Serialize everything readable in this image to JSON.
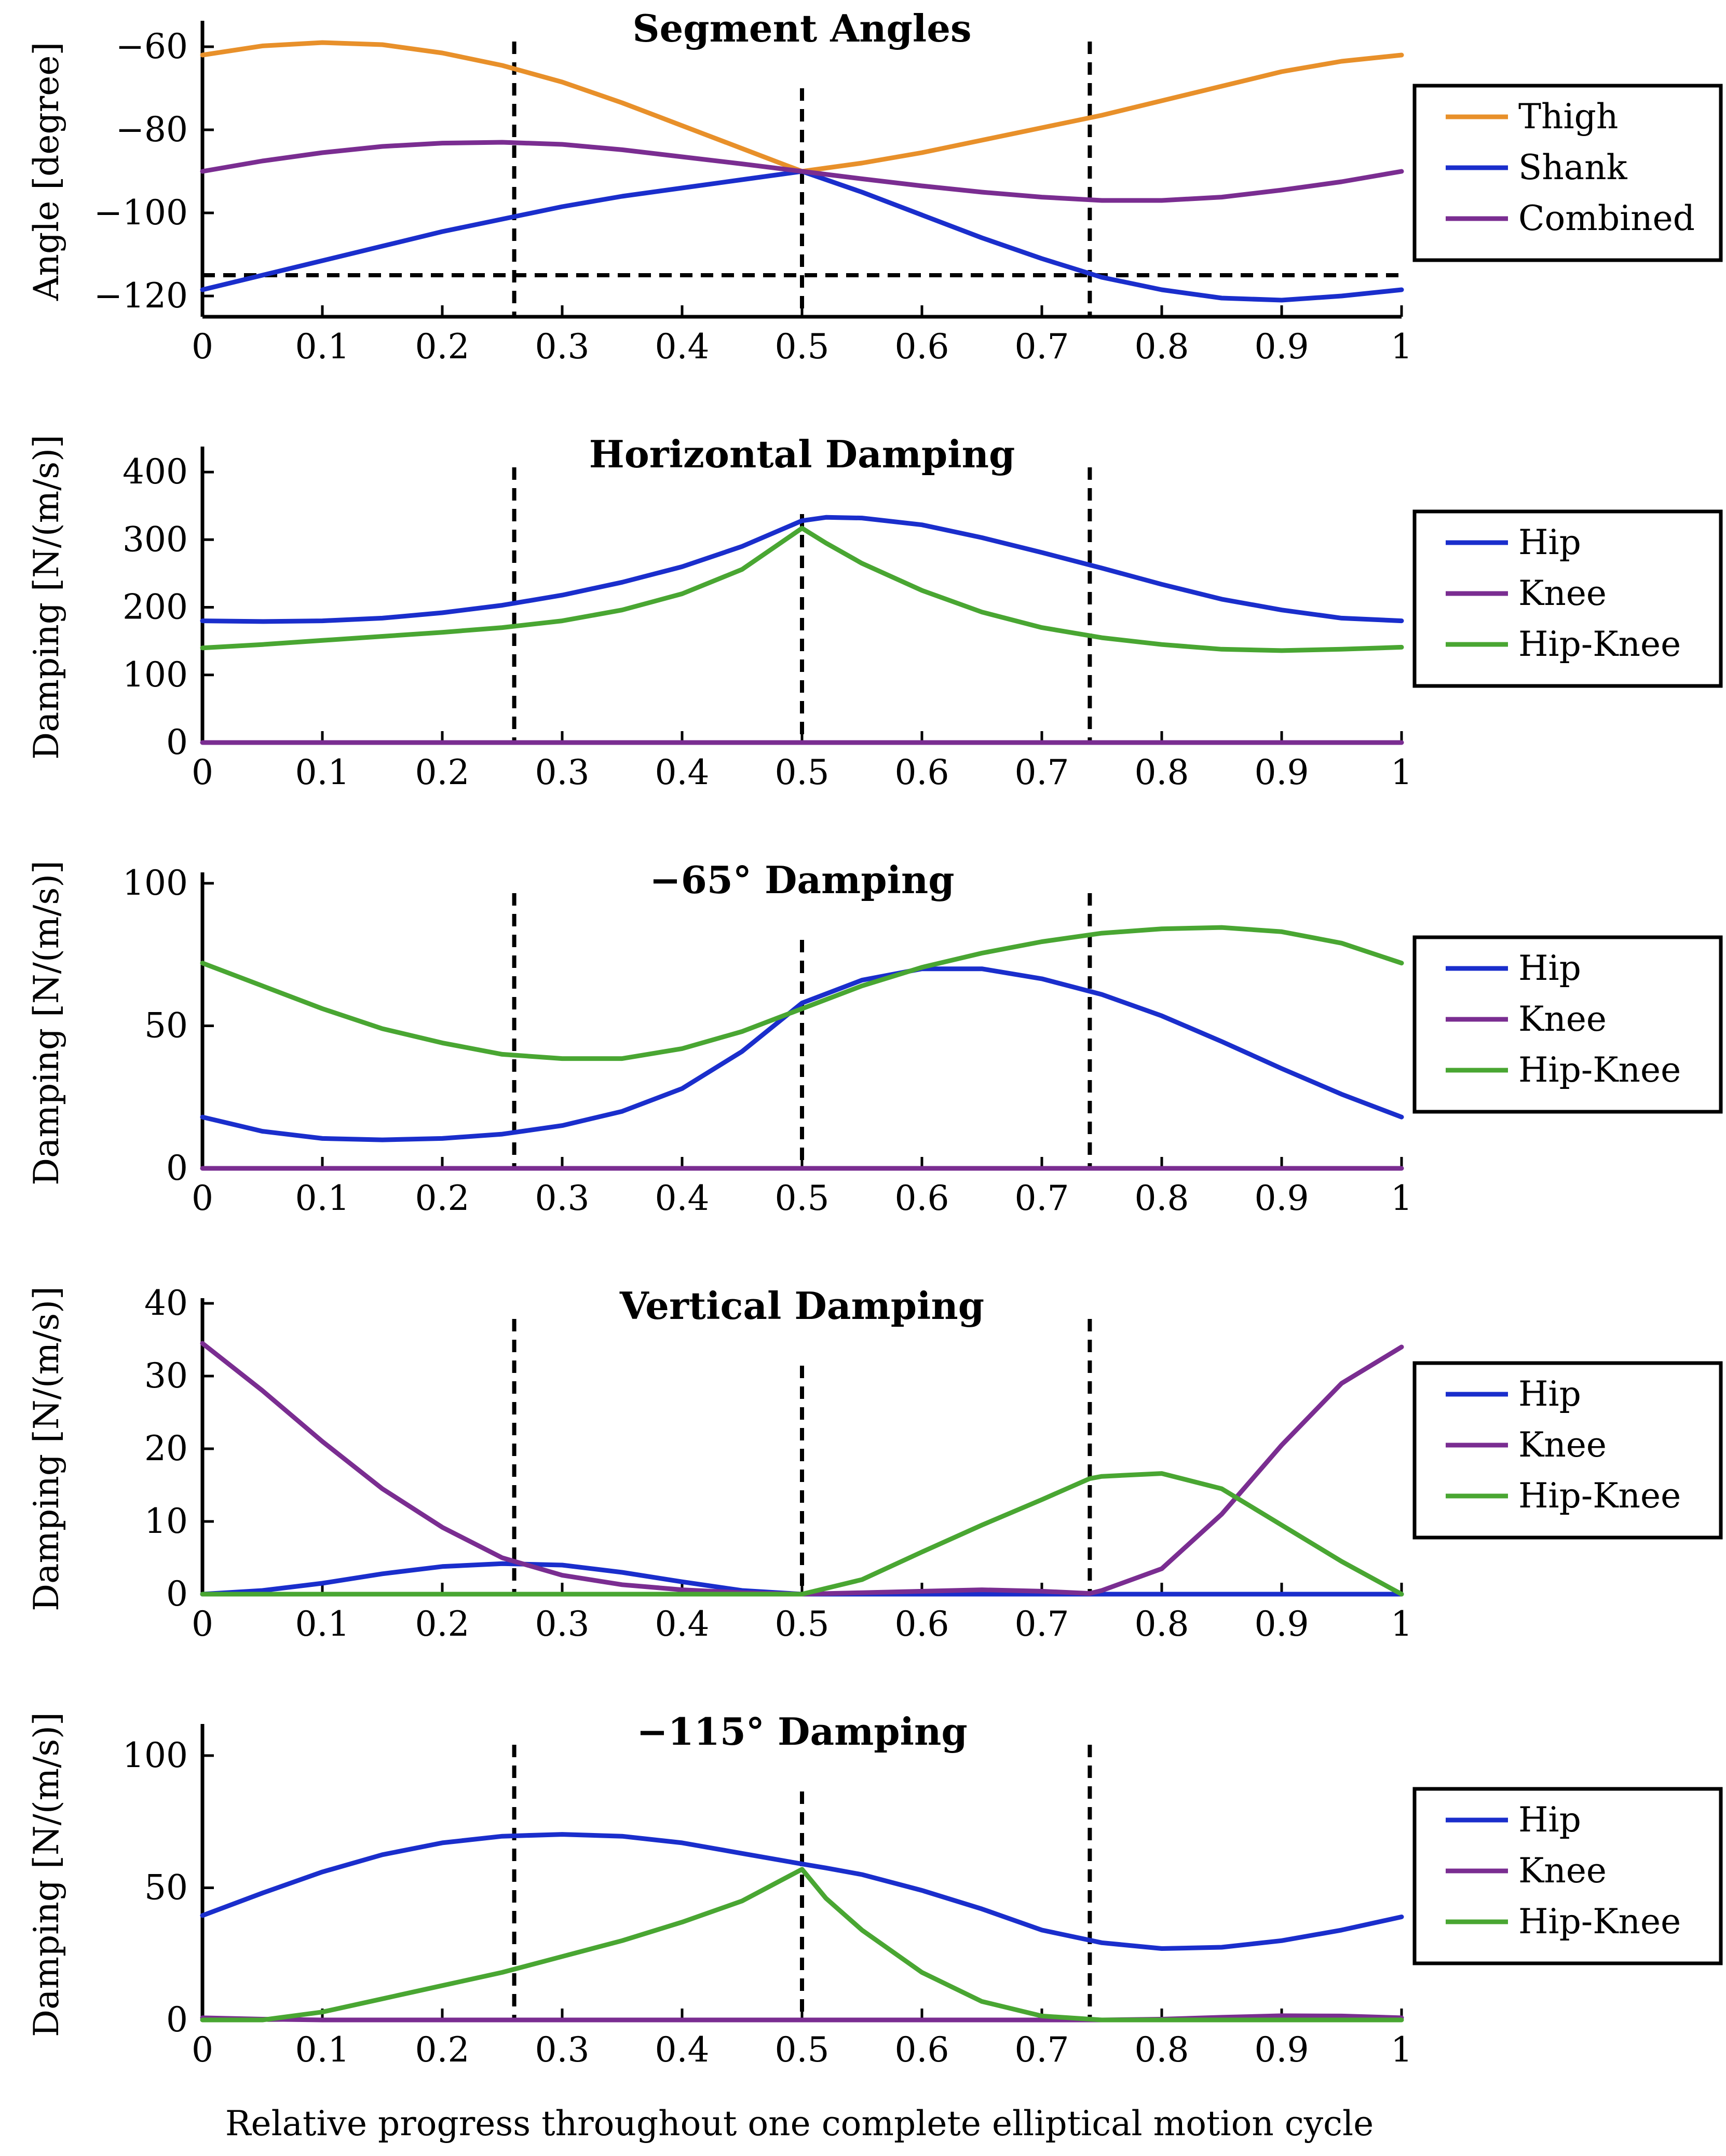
{
  "chart_data": [
    {
      "type": "line",
      "title": "Segment Angles",
      "ylabel": "Angle [degree]",
      "xlim": [
        0,
        1
      ],
      "ylim": [
        -125,
        -55
      ],
      "yticks": [
        -60,
        -80,
        -100,
        -120
      ],
      "ytick_labels": [
        "−60",
        "−80",
        "−100",
        "−120"
      ],
      "xticks": [
        0,
        0.1,
        0.2,
        0.3,
        0.4,
        0.5,
        0.6,
        0.7,
        0.8,
        0.9,
        1
      ],
      "xtick_labels": [
        "0",
        "0.1",
        "0.2",
        "0.3",
        "0.4",
        "0.5",
        "0.6",
        "0.7",
        "0.8",
        "0.9",
        "1"
      ],
      "vlines": [
        0.26,
        0.5,
        0.74
      ],
      "hlines": [
        -115
      ],
      "legend": "right",
      "x": [
        0,
        0.05,
        0.1,
        0.15,
        0.2,
        0.25,
        0.3,
        0.35,
        0.4,
        0.45,
        0.5,
        0.55,
        0.6,
        0.65,
        0.7,
        0.75,
        0.8,
        0.85,
        0.9,
        0.95,
        1
      ],
      "series": [
        {
          "name": "Thigh",
          "color": "#e8902a",
          "values": [
            -62,
            -59.8,
            -59,
            -59.5,
            -61.5,
            -64.5,
            -68.5,
            -73.5,
            -79,
            -84.5,
            -90,
            -88,
            -85.5,
            -82.5,
            -79.5,
            -76.5,
            -73,
            -69.5,
            -66,
            -63.5,
            -62
          ]
        },
        {
          "name": "Shank",
          "color": "#1a2ecc",
          "values": [
            -118.5,
            -115,
            -111.5,
            -108,
            -104.5,
            -101.5,
            -98.5,
            -96,
            -94,
            -92,
            -90,
            -95,
            -100.5,
            -106,
            -111,
            -115.5,
            -118.5,
            -120.5,
            -121,
            -120,
            -118.5
          ]
        },
        {
          "name": "Combined",
          "color": "#7a2d91",
          "values": [
            -90,
            -87.5,
            -85.5,
            -84,
            -83.2,
            -83,
            -83.5,
            -84.8,
            -86.5,
            -88.2,
            -90,
            -91.8,
            -93.5,
            -95,
            -96.2,
            -97,
            -97,
            -96.2,
            -94.5,
            -92.5,
            -90
          ]
        }
      ]
    },
    {
      "type": "line",
      "title": "Horizontal Damping",
      "ylabel": "Damping [N/(m/s)]",
      "xlim": [
        0,
        1
      ],
      "ylim": [
        0,
        430
      ],
      "yticks": [
        0,
        100,
        200,
        300,
        400
      ],
      "ytick_labels": [
        "0",
        "100",
        "200",
        "300",
        "400"
      ],
      "xticks": [
        0,
        0.1,
        0.2,
        0.3,
        0.4,
        0.5,
        0.6,
        0.7,
        0.8,
        0.9,
        1
      ],
      "xtick_labels": [
        "0",
        "0.1",
        "0.2",
        "0.3",
        "0.4",
        "0.5",
        "0.6",
        "0.7",
        "0.8",
        "0.9",
        "1"
      ],
      "vlines": [
        0.26,
        0.5,
        0.74
      ],
      "hlines": [],
      "legend": "right",
      "x": [
        0,
        0.05,
        0.1,
        0.15,
        0.2,
        0.25,
        0.3,
        0.35,
        0.4,
        0.45,
        0.5,
        0.52,
        0.55,
        0.6,
        0.65,
        0.7,
        0.75,
        0.8,
        0.85,
        0.9,
        0.95,
        1
      ],
      "series": [
        {
          "name": "Hip",
          "color": "#1a2ecc",
          "values": [
            180,
            179,
            180,
            184,
            192,
            203,
            218,
            237,
            260,
            290,
            328,
            333,
            332,
            322,
            303,
            281,
            258,
            234,
            212,
            196,
            184,
            180
          ]
        },
        {
          "name": "Knee",
          "color": "#7a2d91",
          "values": [
            0,
            0,
            0,
            0,
            0,
            0,
            0,
            0,
            0,
            0,
            0,
            0,
            0,
            0,
            0,
            0,
            0,
            0,
            0,
            0,
            0,
            0
          ]
        },
        {
          "name": "Hip-Knee",
          "color": "#49a632",
          "values": [
            140,
            145,
            151,
            157,
            163,
            170,
            180,
            196,
            220,
            256,
            317,
            295,
            265,
            225,
            193,
            170,
            155,
            145,
            138,
            136,
            138,
            141
          ]
        }
      ]
    },
    {
      "type": "line",
      "title": "−65° Damping",
      "ylabel": "Damping [N/(m/s)]",
      "xlim": [
        0,
        1
      ],
      "ylim": [
        0,
        102
      ],
      "yticks": [
        0,
        50,
        100
      ],
      "ytick_labels": [
        "0",
        "50",
        "100"
      ],
      "xticks": [
        0,
        0.1,
        0.2,
        0.3,
        0.4,
        0.5,
        0.6,
        0.7,
        0.8,
        0.9,
        1
      ],
      "xtick_labels": [
        "0",
        "0.1",
        "0.2",
        "0.3",
        "0.4",
        "0.5",
        "0.6",
        "0.7",
        "0.8",
        "0.9",
        "1"
      ],
      "vlines": [
        0.26,
        0.5,
        0.74
      ],
      "hlines": [],
      "legend": "right",
      "x": [
        0,
        0.05,
        0.1,
        0.15,
        0.2,
        0.25,
        0.3,
        0.35,
        0.4,
        0.45,
        0.5,
        0.55,
        0.6,
        0.65,
        0.7,
        0.75,
        0.8,
        0.85,
        0.9,
        0.95,
        1
      ],
      "series": [
        {
          "name": "Hip",
          "color": "#1a2ecc",
          "values": [
            18,
            13,
            10.5,
            10,
            10.5,
            12,
            15,
            20,
            28,
            41,
            58,
            66,
            70,
            70,
            66.5,
            61,
            53.5,
            44.5,
            35,
            26,
            18
          ]
        },
        {
          "name": "Knee",
          "color": "#7a2d91",
          "values": [
            0,
            0,
            0,
            0,
            0,
            0,
            0,
            0,
            0,
            0,
            0,
            0,
            0,
            0,
            0,
            0,
            0,
            0,
            0,
            0,
            0
          ]
        },
        {
          "name": "Hip-Knee",
          "color": "#49a632",
          "values": [
            72,
            64,
            56,
            49,
            44,
            40,
            38.5,
            38.5,
            42,
            48,
            56,
            64,
            70.5,
            75.5,
            79.5,
            82.5,
            84,
            84.5,
            83,
            79,
            72
          ]
        }
      ]
    },
    {
      "type": "line",
      "title": "Vertical Damping",
      "ylabel": "Damping [N/(m/s)]",
      "xlim": [
        0,
        1
      ],
      "ylim": [
        0,
        40
      ],
      "yticks": [
        0,
        10,
        20,
        30,
        40
      ],
      "ytick_labels": [
        "0",
        "10",
        "20",
        "30",
        "40"
      ],
      "xticks": [
        0,
        0.1,
        0.2,
        0.3,
        0.4,
        0.5,
        0.6,
        0.7,
        0.8,
        0.9,
        1
      ],
      "xtick_labels": [
        "0",
        "0.1",
        "0.2",
        "0.3",
        "0.4",
        "0.5",
        "0.6",
        "0.7",
        "0.8",
        "0.9",
        "1"
      ],
      "vlines": [
        0.26,
        0.5,
        0.74
      ],
      "hlines": [],
      "legend": "right",
      "x": [
        0,
        0.05,
        0.1,
        0.15,
        0.2,
        0.25,
        0.3,
        0.35,
        0.4,
        0.45,
        0.5,
        0.55,
        0.6,
        0.65,
        0.7,
        0.74,
        0.75,
        0.8,
        0.85,
        0.9,
        0.95,
        1
      ],
      "series": [
        {
          "name": "Hip",
          "color": "#1a2ecc",
          "values": [
            0,
            0.5,
            1.5,
            2.8,
            3.8,
            4.2,
            4,
            3,
            1.7,
            0.5,
            0,
            0,
            0,
            0,
            0,
            0,
            0,
            0,
            0,
            0,
            0,
            0
          ]
        },
        {
          "name": "Knee",
          "color": "#7a2d91",
          "values": [
            34.5,
            28,
            21,
            14.5,
            9.2,
            5,
            2.6,
            1.3,
            0.6,
            0.2,
            0,
            0.2,
            0.4,
            0.6,
            0.4,
            0.1,
            0.5,
            3.5,
            11,
            20.5,
            29,
            34
          ]
        },
        {
          "name": "Hip-Knee",
          "color": "#49a632",
          "values": [
            0,
            0,
            0,
            0,
            0,
            0,
            0,
            0,
            0,
            0,
            0,
            2,
            5.8,
            9.5,
            13,
            15.9,
            16.2,
            16.6,
            14.5,
            9.5,
            4.5,
            0
          ]
        }
      ]
    },
    {
      "type": "line",
      "title": "−115° Damping",
      "ylabel": "Damping [N/(m/s)]",
      "xlim": [
        0,
        1
      ],
      "ylim": [
        0,
        110
      ],
      "yticks": [
        0,
        50,
        100
      ],
      "ytick_labels": [
        "0",
        "50",
        "100"
      ],
      "xticks": [
        0,
        0.1,
        0.2,
        0.3,
        0.4,
        0.5,
        0.6,
        0.7,
        0.8,
        0.9,
        1
      ],
      "xtick_labels": [
        "0",
        "0.1",
        "0.2",
        "0.3",
        "0.4",
        "0.5",
        "0.6",
        "0.7",
        "0.8",
        "0.9",
        "1"
      ],
      "vlines": [
        0.26,
        0.5,
        0.74
      ],
      "hlines": [],
      "legend": "right",
      "x": [
        0,
        0.05,
        0.1,
        0.15,
        0.2,
        0.25,
        0.3,
        0.35,
        0.4,
        0.45,
        0.5,
        0.52,
        0.55,
        0.6,
        0.65,
        0.7,
        0.75,
        0.8,
        0.85,
        0.9,
        0.95,
        1
      ],
      "series": [
        {
          "name": "Hip",
          "color": "#1a2ecc",
          "values": [
            39.5,
            48,
            56,
            62.5,
            67,
            69.5,
            70.2,
            69.5,
            67,
            63,
            59,
            57.5,
            55,
            49,
            42,
            34,
            29.2,
            27,
            27.5,
            30,
            34,
            39
          ]
        },
        {
          "name": "Knee",
          "color": "#7a2d91",
          "values": [
            0.8,
            0.3,
            0,
            0,
            0,
            0,
            0,
            0,
            0,
            0,
            0,
            0,
            0,
            0,
            0,
            0,
            0,
            0.3,
            1,
            1.6,
            1.5,
            0.8
          ]
        },
        {
          "name": "Hip-Knee",
          "color": "#49a632",
          "values": [
            0,
            0,
            3,
            8,
            13,
            18,
            24,
            30,
            37,
            45,
            57,
            46,
            34,
            18,
            7,
            1.5,
            0,
            0,
            0,
            0,
            0,
            0
          ]
        }
      ]
    }
  ],
  "xlabel": "Relative progress throughout one complete elliptical motion cycle",
  "colors": {
    "dashed": "#000000",
    "axis": "#000000"
  }
}
